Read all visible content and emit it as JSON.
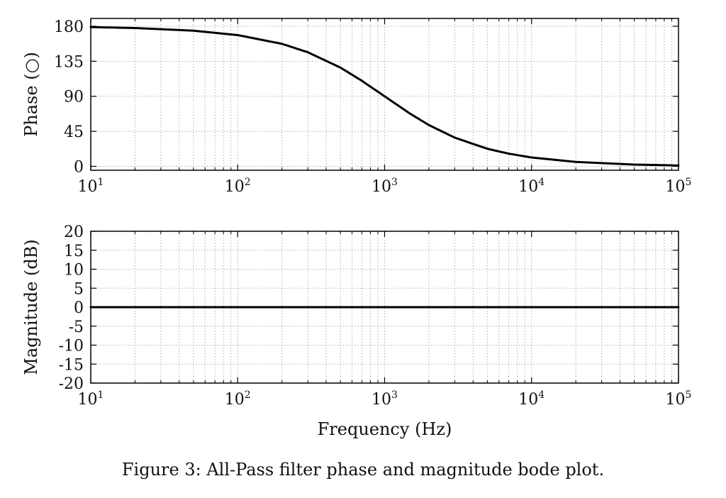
{
  "caption": "Figure 3: All-Pass filter phase and magnitude bode plot.",
  "chart_data": [
    {
      "type": "line",
      "xscale": "log",
      "xlim": [
        10,
        100000
      ],
      "ylim": [
        -5,
        190
      ],
      "ylabel": "Phase (○)",
      "xlabel": "",
      "yticks": [
        0,
        45,
        90,
        135,
        180
      ],
      "xticks": [
        {
          "base": "10",
          "exp": "1"
        },
        {
          "base": "10",
          "exp": "2"
        },
        {
          "base": "10",
          "exp": "3"
        },
        {
          "base": "10",
          "exp": "4"
        },
        {
          "base": "10",
          "exp": "5"
        }
      ],
      "grid": true,
      "color": "#000000",
      "series": [
        {
          "x": [
            10,
            20,
            50,
            100,
            200,
            300,
            500,
            700,
            1000,
            1500,
            2000,
            3000,
            5000,
            7000,
            10000,
            20000,
            50000,
            100000
          ],
          "values": [
            178.9,
            177.7,
            174.3,
            168.6,
            157.4,
            146.6,
            126.9,
            109.9,
            90,
            67.4,
            53.1,
            36.9,
            22.6,
            16.3,
            11.4,
            5.7,
            2.3,
            1.1
          ]
        }
      ]
    },
    {
      "type": "line",
      "xscale": "log",
      "xlim": [
        10,
        100000
      ],
      "ylim": [
        -20,
        20
      ],
      "ylabel": "Magnitude (dB)",
      "xlabel": "Frequency (Hz)",
      "yticks": [
        20,
        15,
        10,
        5,
        0,
        -5,
        -10,
        -15,
        -20
      ],
      "xticks": [
        {
          "base": "10",
          "exp": "1"
        },
        {
          "base": "10",
          "exp": "2"
        },
        {
          "base": "10",
          "exp": "3"
        },
        {
          "base": "10",
          "exp": "4"
        },
        {
          "base": "10",
          "exp": "5"
        }
      ],
      "grid": true,
      "color": "#000000",
      "series": [
        {
          "x": [
            10,
            100,
            1000,
            10000,
            100000
          ],
          "values": [
            0,
            0,
            0,
            0,
            0
          ]
        }
      ]
    }
  ]
}
